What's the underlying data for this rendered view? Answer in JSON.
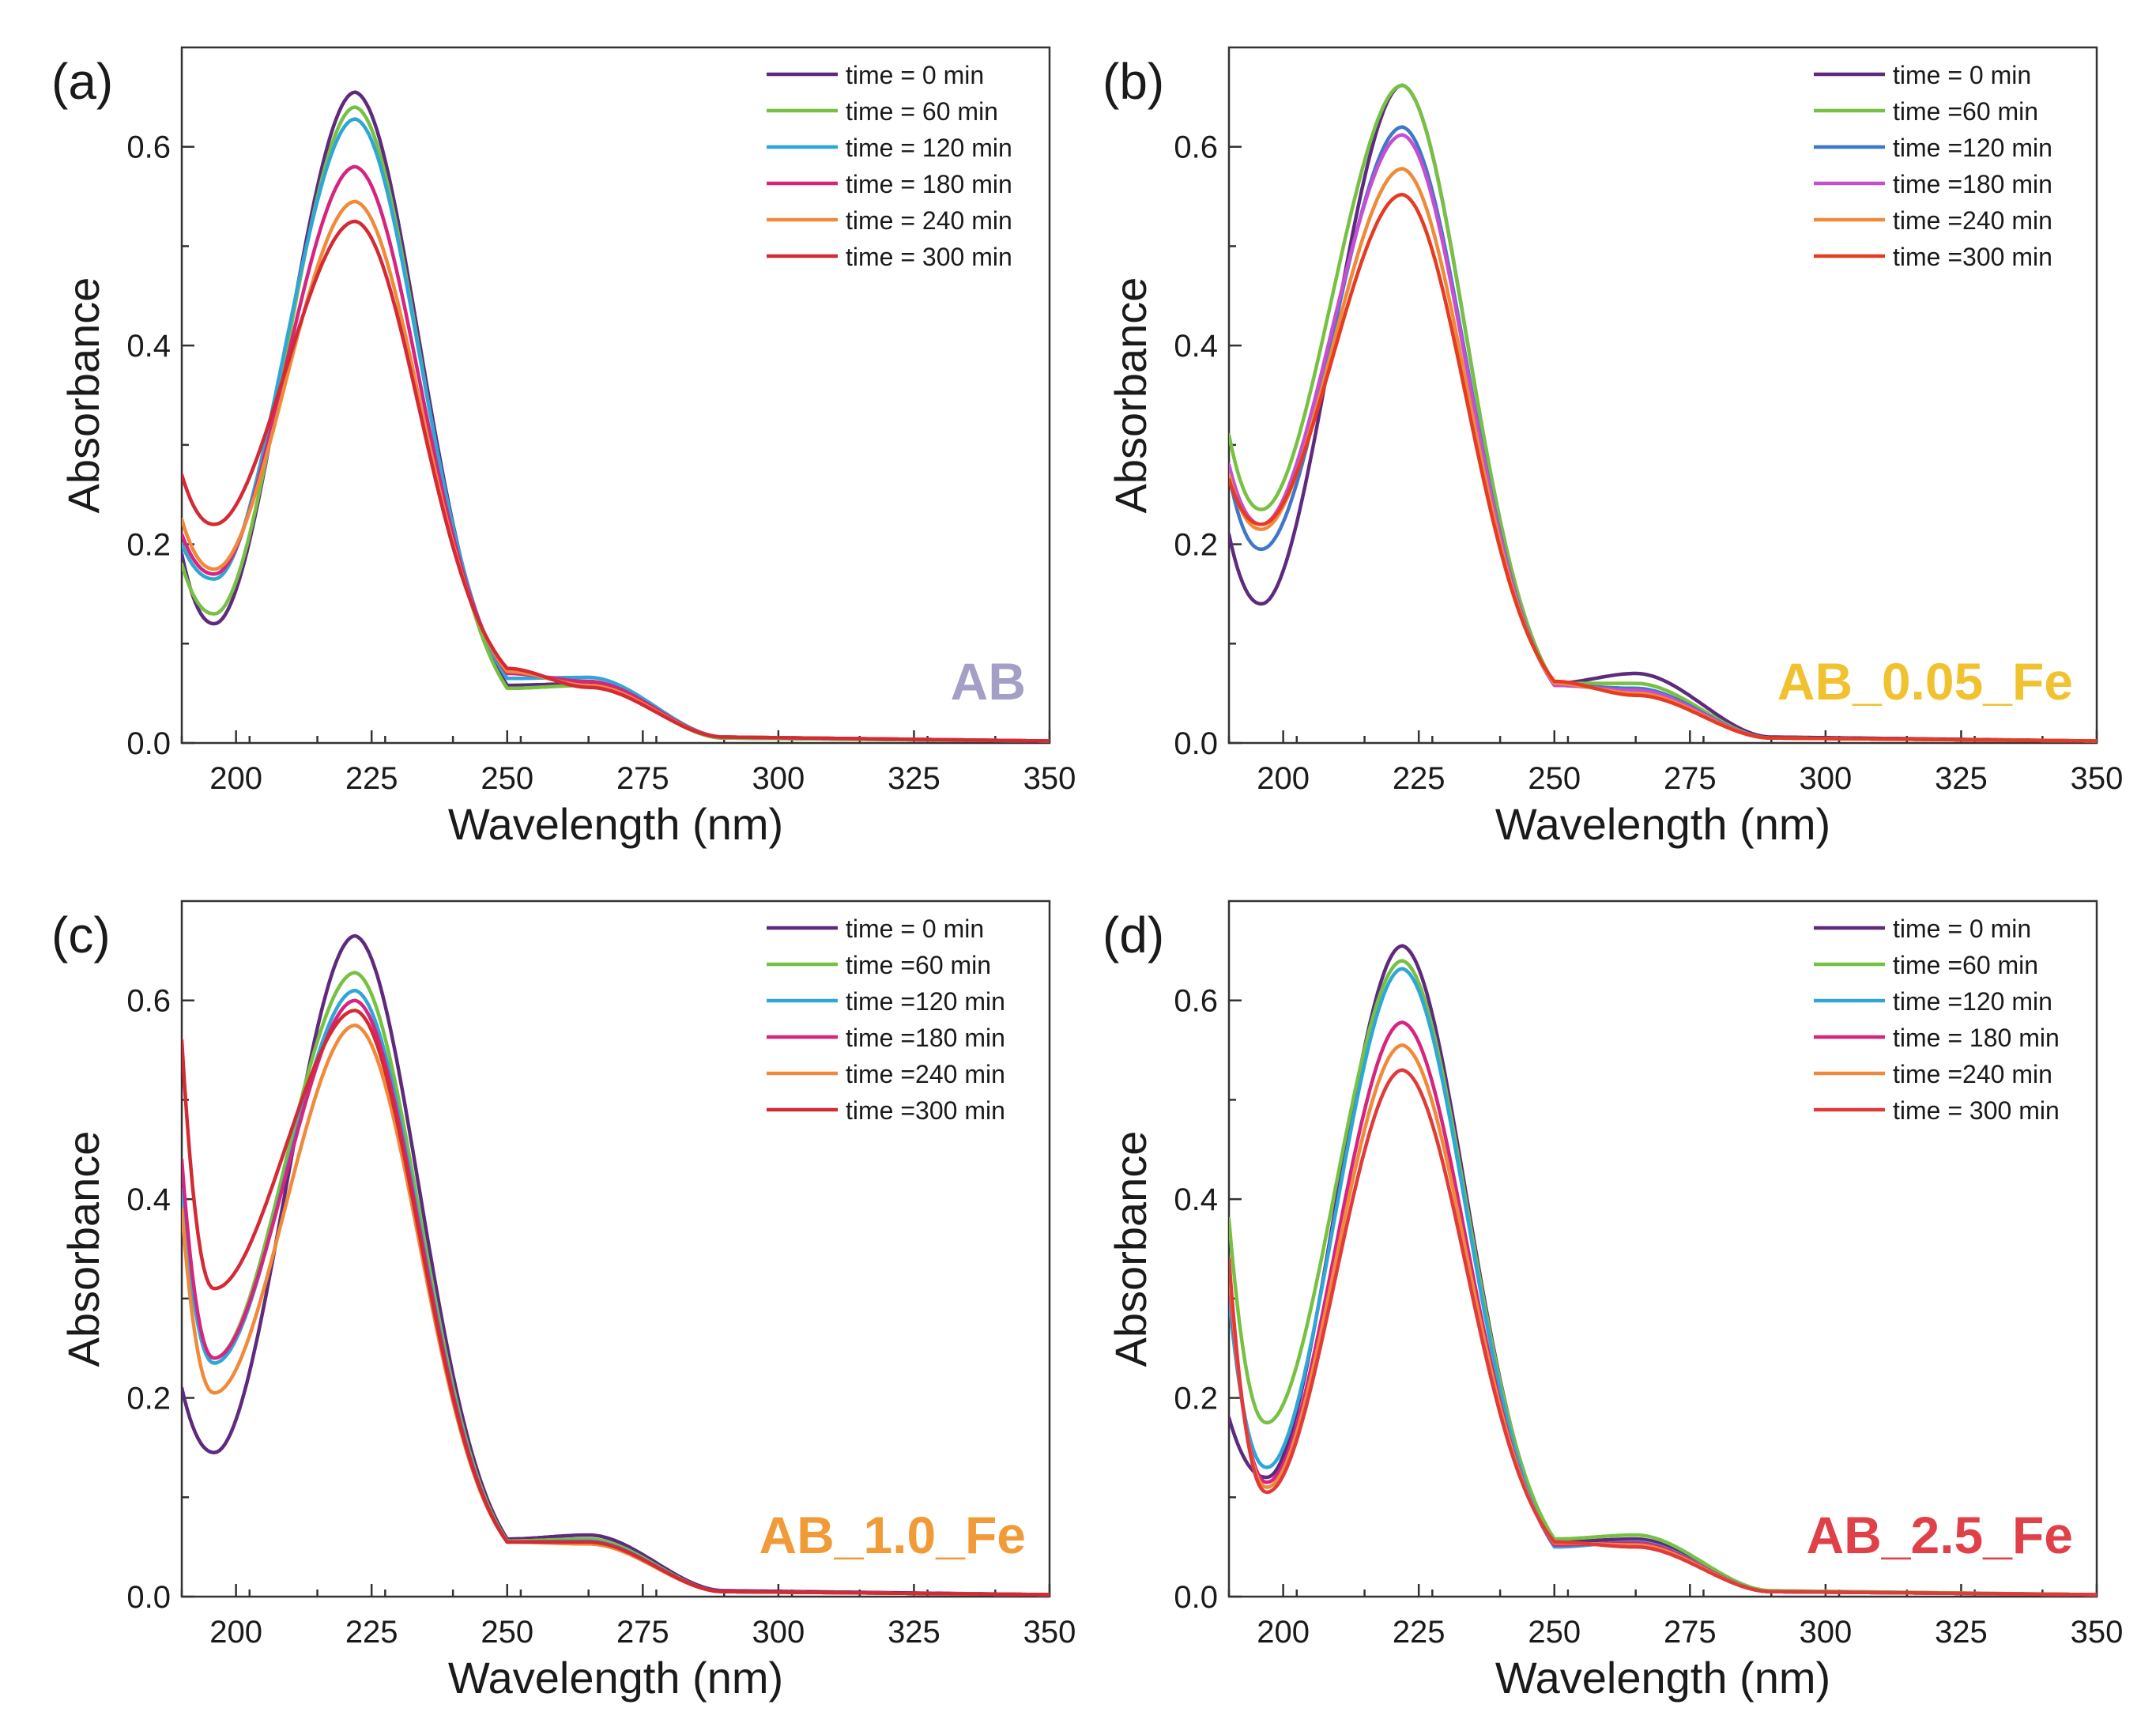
{
  "chart_data": [
    {
      "type": "line",
      "panel": "(a)",
      "sample_label": "AB",
      "sample_color": "#a39fc6",
      "xlabel": "Wavelength (nm)",
      "ylabel": "Absorbance",
      "xlim": [
        190,
        350
      ],
      "ylim": [
        0,
        0.7
      ],
      "xticks": [
        200,
        225,
        250,
        275,
        300,
        325,
        350
      ],
      "yticks": [
        0.0,
        0.2,
        0.4,
        0.6
      ],
      "x": [
        190,
        196,
        222,
        250,
        265,
        290,
        350
      ],
      "series": [
        {
          "name": "time = 0 min",
          "color": "#5e2a7e",
          "values": [
            0.19,
            0.12,
            0.655,
            0.058,
            0.06,
            0.005,
            0.002
          ]
        },
        {
          "name": "time = 60 min",
          "color": "#77c142",
          "values": [
            0.18,
            0.13,
            0.64,
            0.055,
            0.058,
            0.005,
            0.002
          ]
        },
        {
          "name": "time = 120 min",
          "color": "#2ea7d8",
          "values": [
            0.2,
            0.165,
            0.628,
            0.065,
            0.066,
            0.006,
            0.002
          ]
        },
        {
          "name": "time = 180 min",
          "color": "#d6247f",
          "values": [
            0.21,
            0.17,
            0.58,
            0.07,
            0.062,
            0.006,
            0.002
          ]
        },
        {
          "name": "time = 240 min",
          "color": "#f08a3a",
          "values": [
            0.225,
            0.175,
            0.545,
            0.072,
            0.058,
            0.006,
            0.002
          ]
        },
        {
          "name": "time = 300 min",
          "color": "#d42a34",
          "values": [
            0.27,
            0.22,
            0.525,
            0.075,
            0.056,
            0.006,
            0.002
          ]
        }
      ]
    },
    {
      "type": "line",
      "panel": "(b)",
      "sample_label": "AB_0.05_Fe",
      "sample_color": "#f0c230",
      "xlabel": "Wavelength (nm)",
      "ylabel": "Absorbance",
      "xlim": [
        190,
        350
      ],
      "ylim": [
        0,
        0.7
      ],
      "xticks": [
        200,
        225,
        250,
        275,
        300,
        325,
        350
      ],
      "yticks": [
        0.0,
        0.2,
        0.4,
        0.6
      ],
      "x": [
        190,
        196,
        222,
        250,
        265,
        290,
        350
      ],
      "series": [
        {
          "name": "time = 0 min",
          "color": "#5e2a7e",
          "values": [
            0.21,
            0.14,
            0.662,
            0.06,
            0.07,
            0.006,
            0.002
          ]
        },
        {
          "name": "time =60 min",
          "color": "#77c142",
          "values": [
            0.31,
            0.235,
            0.662,
            0.06,
            0.06,
            0.005,
            0.002
          ]
        },
        {
          "name": "time =120 min",
          "color": "#3f78c8",
          "values": [
            0.27,
            0.195,
            0.62,
            0.058,
            0.055,
            0.005,
            0.002
          ]
        },
        {
          "name": "time =180 min",
          "color": "#c64fd1",
          "values": [
            0.28,
            0.22,
            0.612,
            0.058,
            0.053,
            0.005,
            0.002
          ]
        },
        {
          "name": "time =240 min",
          "color": "#f08a3a",
          "values": [
            0.27,
            0.215,
            0.578,
            0.06,
            0.05,
            0.005,
            0.002
          ]
        },
        {
          "name": "time =300 min",
          "color": "#e53b22",
          "values": [
            0.265,
            0.22,
            0.552,
            0.062,
            0.048,
            0.005,
            0.002
          ]
        }
      ]
    },
    {
      "type": "line",
      "panel": "(c)",
      "sample_label": "AB_1.0_Fe",
      "sample_color": "#f19a38",
      "xlabel": "Wavelength (nm)",
      "ylabel": "Absorbance",
      "xlim": [
        190,
        350
      ],
      "ylim": [
        0,
        0.7
      ],
      "xticks": [
        200,
        225,
        250,
        275,
        300,
        325,
        350
      ],
      "yticks": [
        0.0,
        0.2,
        0.4,
        0.6
      ],
      "x": [
        190,
        196,
        222,
        250,
        265,
        290,
        350
      ],
      "series": [
        {
          "name": "time = 0 min",
          "color": "#5e2a7e",
          "values": [
            0.21,
            0.145,
            0.665,
            0.058,
            0.062,
            0.006,
            0.002
          ]
        },
        {
          "name": "time =60 min",
          "color": "#77c142",
          "values": [
            0.4,
            0.24,
            0.628,
            0.056,
            0.058,
            0.005,
            0.002
          ]
        },
        {
          "name": "time =120 min",
          "color": "#2ea7d8",
          "values": [
            0.41,
            0.235,
            0.61,
            0.055,
            0.056,
            0.005,
            0.002
          ]
        },
        {
          "name": "time =180 min",
          "color": "#d6247f",
          "values": [
            0.44,
            0.24,
            0.6,
            0.055,
            0.055,
            0.005,
            0.002
          ]
        },
        {
          "name": "time =240 min",
          "color": "#f08a3a",
          "values": [
            0.39,
            0.205,
            0.575,
            0.055,
            0.053,
            0.005,
            0.002
          ]
        },
        {
          "name": "time =300 min",
          "color": "#d42a34",
          "values": [
            0.56,
            0.31,
            0.59,
            0.055,
            0.055,
            0.005,
            0.002
          ]
        }
      ]
    },
    {
      "type": "line",
      "panel": "(d)",
      "sample_label": "AB_2.5_Fe",
      "sample_color": "#e04048",
      "xlabel": "Wavelength (nm)",
      "ylabel": "Absorbance",
      "xlim": [
        190,
        350
      ],
      "ylim": [
        0,
        0.7
      ],
      "xticks": [
        200,
        225,
        250,
        275,
        300,
        325,
        350
      ],
      "yticks": [
        0.0,
        0.2,
        0.4,
        0.6
      ],
      "x": [
        190,
        197,
        222,
        250,
        265,
        290,
        350
      ],
      "series": [
        {
          "name": "time = 0 min",
          "color": "#5e2a7e",
          "values": [
            0.18,
            0.12,
            0.655,
            0.055,
            0.058,
            0.005,
            0.002
          ]
        },
        {
          "name": "time =60 min",
          "color": "#77c142",
          "values": [
            0.38,
            0.175,
            0.64,
            0.058,
            0.062,
            0.006,
            0.002
          ]
        },
        {
          "name": "time =120 min",
          "color": "#2ea7d8",
          "values": [
            0.3,
            0.13,
            0.632,
            0.05,
            0.055,
            0.005,
            0.002
          ]
        },
        {
          "name": "time = 180 min",
          "color": "#d6247f",
          "values": [
            0.32,
            0.115,
            0.578,
            0.052,
            0.054,
            0.005,
            0.002
          ]
        },
        {
          "name": "time =240 min",
          "color": "#f08a3a",
          "values": [
            0.33,
            0.11,
            0.555,
            0.054,
            0.052,
            0.005,
            0.002
          ]
        },
        {
          "name": "time = 300 min",
          "color": "#e03b3b",
          "values": [
            0.34,
            0.105,
            0.53,
            0.055,
            0.05,
            0.005,
            0.002
          ]
        }
      ]
    }
  ]
}
